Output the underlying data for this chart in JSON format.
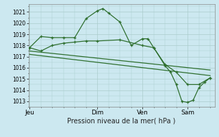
{
  "xlabel": "Pression niveau de la mer( hPa )",
  "bg_color": "#cce8f0",
  "grid_color": "#aacccc",
  "line_color": "#2d6e2d",
  "ylim": [
    1012.5,
    1021.7
  ],
  "yticks": [
    1013,
    1014,
    1015,
    1016,
    1017,
    1018,
    1019,
    1020,
    1021
  ],
  "xtick_labels": [
    "Jeu",
    "Dim",
    "Ven",
    "Sam"
  ],
  "xtick_positions": [
    0,
    3,
    5,
    7
  ],
  "xlim": [
    -0.05,
    8.2
  ],
  "series1_x": [
    0,
    0.5,
    1.0,
    1.5,
    2.0,
    2.5,
    3.0,
    3.25,
    3.5,
    4.0,
    4.5,
    5.0,
    5.25,
    5.5,
    6.0,
    6.5,
    7.0,
    7.5,
    8.0
  ],
  "series1_y": [
    1017.8,
    1018.8,
    1018.7,
    1018.7,
    1018.7,
    1020.4,
    1021.1,
    1021.3,
    1020.9,
    1020.1,
    1018.0,
    1018.6,
    1018.6,
    1017.8,
    1016.3,
    1015.6,
    1014.5,
    1014.5,
    1015.1
  ],
  "series2_x": [
    0,
    8.0
  ],
  "series2_y": [
    1017.5,
    1015.8
  ],
  "series3_x": [
    0,
    8.0
  ],
  "series3_y": [
    1017.2,
    1015.3
  ],
  "series4_x": [
    0,
    0.5,
    1.0,
    1.5,
    2.0,
    2.5,
    3.0,
    4.0,
    5.0,
    5.5,
    6.0,
    6.25,
    6.5,
    6.75,
    7.0,
    7.25,
    7.5,
    7.75,
    8.0
  ],
  "series4_y": [
    1017.8,
    1017.5,
    1018.0,
    1018.2,
    1018.3,
    1018.4,
    1018.4,
    1018.5,
    1018.0,
    1017.8,
    1016.2,
    1015.6,
    1014.5,
    1013.0,
    1012.9,
    1013.1,
    1014.2,
    1014.7,
    1015.1
  ]
}
